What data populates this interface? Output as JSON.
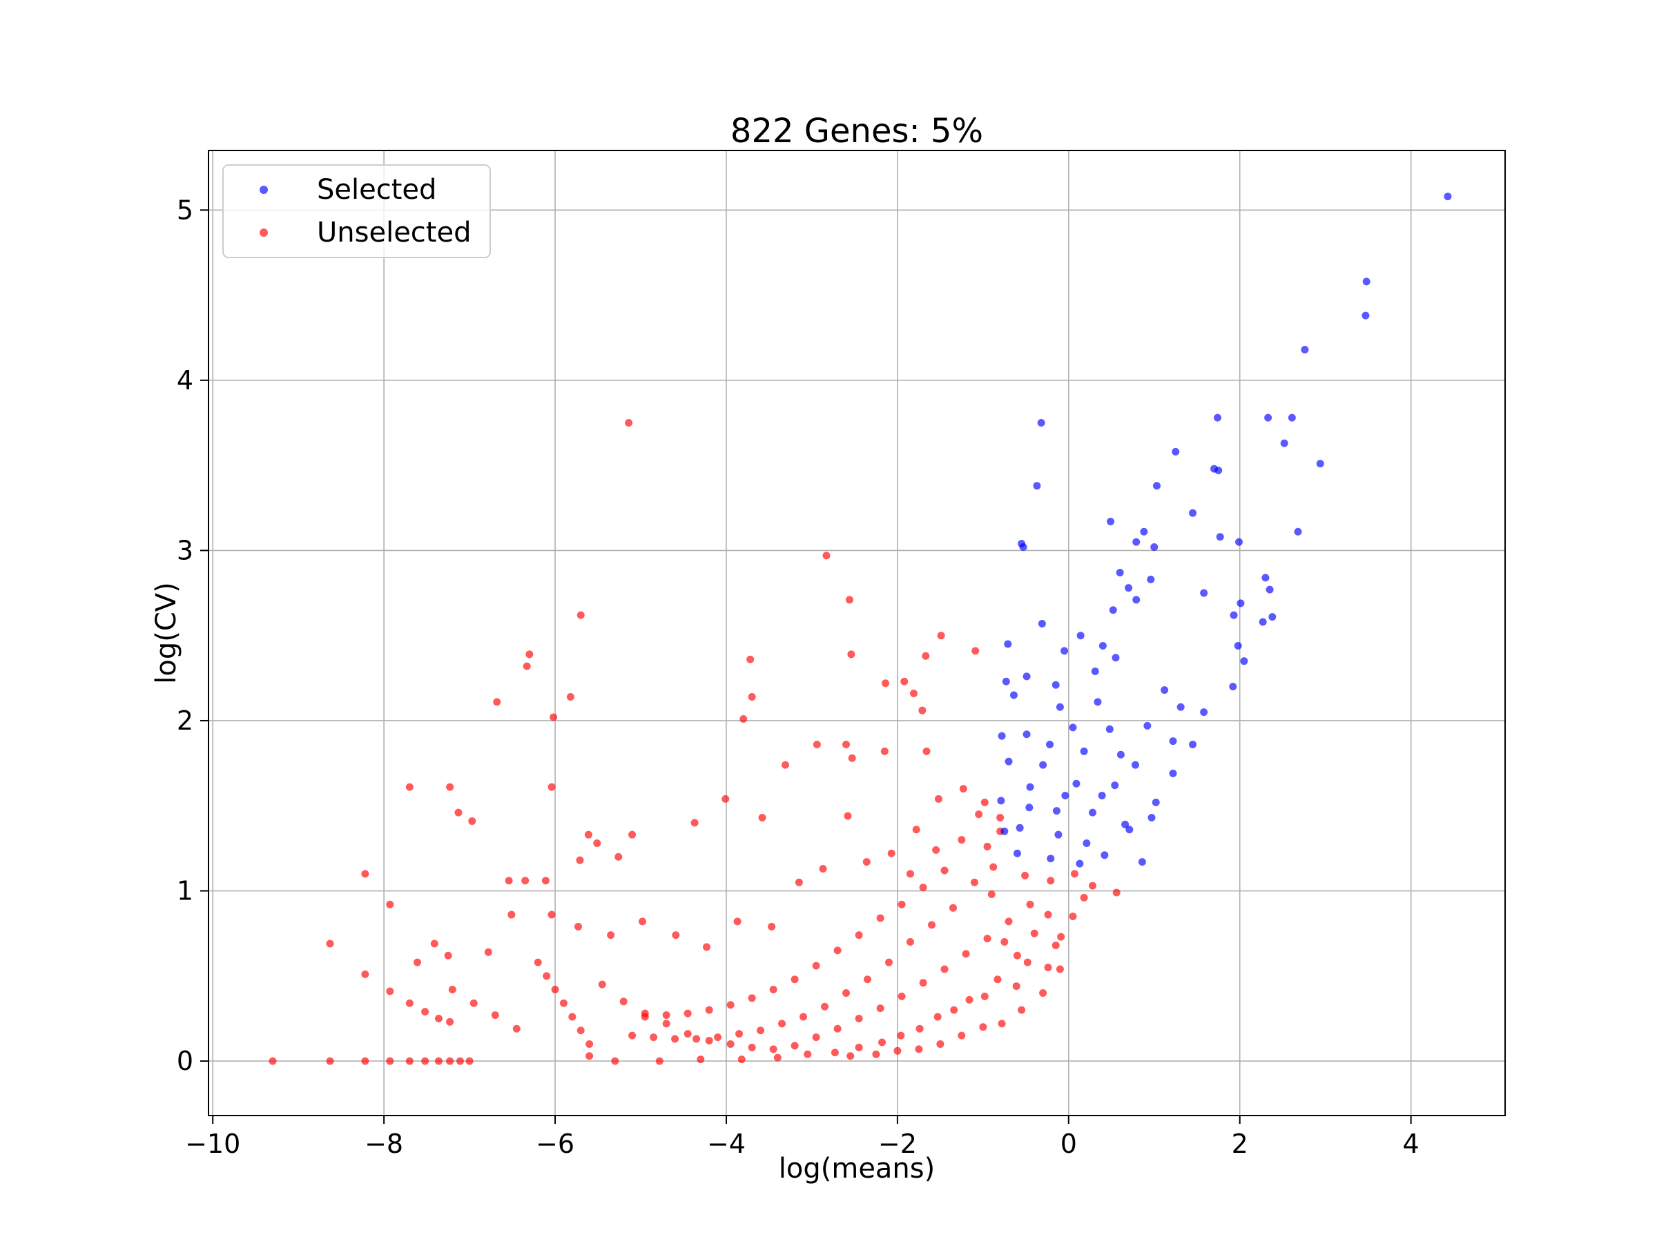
{
  "chart_data": {
    "type": "scatter",
    "title": "822 Genes: 5%",
    "xlabel": "log(means)",
    "ylabel": "log(CV)",
    "xlim": [
      -10.05,
      5.1
    ],
    "ylim": [
      -0.32,
      5.35
    ],
    "x_ticks": [
      -10,
      -8,
      -6,
      -4,
      -2,
      0,
      2,
      4
    ],
    "x_tick_labels": [
      "−10",
      "−8",
      "−6",
      "−4",
      "−2",
      "0",
      "2",
      "4"
    ],
    "y_ticks": [
      0,
      1,
      2,
      3,
      4,
      5
    ],
    "y_tick_labels": [
      "0",
      "1",
      "2",
      "3",
      "4",
      "5"
    ],
    "grid": true,
    "legend_position": "upper-left",
    "series": [
      {
        "name": "Selected",
        "color": "#0000ff",
        "points": [
          [
            4.43,
            5.08
          ],
          [
            3.48,
            4.58
          ],
          [
            3.47,
            4.38
          ],
          [
            2.76,
            4.18
          ],
          [
            2.94,
            3.51
          ],
          [
            2.52,
            3.63
          ],
          [
            2.61,
            3.78
          ],
          [
            2.33,
            3.78
          ],
          [
            1.74,
            3.78
          ],
          [
            1.25,
            3.58
          ],
          [
            1.7,
            3.48
          ],
          [
            1.75,
            3.47
          ],
          [
            1.03,
            3.38
          ],
          [
            1.45,
            3.22
          ],
          [
            2.68,
            3.11
          ],
          [
            -0.32,
            3.75
          ],
          [
            -0.37,
            3.38
          ],
          [
            -0.55,
            3.04
          ],
          [
            -0.53,
            3.02
          ],
          [
            0.49,
            3.17
          ],
          [
            0.79,
            3.05
          ],
          [
            1.0,
            3.02
          ],
          [
            0.88,
            3.11
          ],
          [
            1.77,
            3.08
          ],
          [
            1.99,
            3.05
          ],
          [
            0.96,
            2.83
          ],
          [
            0.6,
            2.87
          ],
          [
            2.3,
            2.84
          ],
          [
            2.35,
            2.77
          ],
          [
            2.01,
            2.69
          ],
          [
            1.93,
            2.62
          ],
          [
            1.58,
            2.75
          ],
          [
            2.38,
            2.61
          ],
          [
            1.98,
            2.44
          ],
          [
            2.27,
            2.58
          ],
          [
            0.52,
            2.65
          ],
          [
            0.7,
            2.78
          ],
          [
            0.79,
            2.71
          ],
          [
            -0.31,
            2.57
          ],
          [
            -0.71,
            2.45
          ],
          [
            -0.05,
            2.41
          ],
          [
            0.31,
            2.29
          ],
          [
            -0.49,
            2.26
          ],
          [
            -0.15,
            2.21
          ],
          [
            -0.73,
            2.23
          ],
          [
            -0.64,
            2.15
          ],
          [
            0.55,
            2.37
          ],
          [
            1.31,
            2.08
          ],
          [
            1.58,
            2.05
          ],
          [
            1.92,
            2.2
          ],
          [
            2.05,
            2.35
          ],
          [
            1.22,
            1.88
          ],
          [
            0.78,
            1.74
          ],
          [
            0.48,
            1.95
          ],
          [
            -0.22,
            1.86
          ],
          [
            -0.49,
            1.92
          ],
          [
            -0.78,
            1.91
          ],
          [
            0.09,
            1.63
          ],
          [
            0.39,
            1.56
          ],
          [
            1.02,
            1.52
          ],
          [
            1.22,
            1.69
          ],
          [
            1.45,
            1.86
          ],
          [
            0.66,
            1.39
          ],
          [
            0.21,
            1.28
          ],
          [
            -0.14,
            1.47
          ],
          [
            -0.45,
            1.61
          ],
          [
            -0.7,
            1.76
          ],
          [
            -0.75,
            1.35
          ],
          [
            -0.6,
            1.22
          ],
          [
            -0.21,
            1.19
          ],
          [
            0.13,
            1.16
          ],
          [
            0.42,
            1.21
          ],
          [
            0.71,
            1.36
          ],
          [
            0.86,
            1.17
          ],
          [
            0.97,
            1.43
          ],
          [
            -0.79,
            1.53
          ],
          [
            -0.46,
            1.49
          ],
          [
            -0.12,
            1.33
          ],
          [
            0.28,
            1.46
          ],
          [
            0.54,
            1.62
          ],
          [
            0.92,
            1.97
          ],
          [
            -0.3,
            1.74
          ],
          [
            0.05,
            1.96
          ],
          [
            0.34,
            2.11
          ],
          [
            0.18,
            1.82
          ],
          [
            -0.57,
            1.37
          ],
          [
            -0.04,
            1.56
          ],
          [
            0.61,
            1.8
          ],
          [
            1.12,
            2.18
          ],
          [
            0.4,
            2.44
          ],
          [
            -0.1,
            2.08
          ],
          [
            0.14,
            2.5
          ]
        ]
      },
      {
        "name": "Unselected",
        "color": "#ff0000",
        "points": [
          [
            -9.3,
            0.0
          ],
          [
            -8.63,
            0.0
          ],
          [
            -8.22,
            0.0
          ],
          [
            -7.93,
            0.0
          ],
          [
            -7.7,
            0.0
          ],
          [
            -7.52,
            0.0
          ],
          [
            -7.36,
            0.0
          ],
          [
            -7.23,
            0.0
          ],
          [
            -7.11,
            0.0
          ],
          [
            -7.0,
            0.0
          ],
          [
            -8.63,
            0.69
          ],
          [
            -8.22,
            1.1
          ],
          [
            -8.22,
            0.51
          ],
          [
            -7.93,
            0.41
          ],
          [
            -7.93,
            0.92
          ],
          [
            -7.7,
            0.34
          ],
          [
            -7.52,
            0.29
          ],
          [
            -7.36,
            0.25
          ],
          [
            -7.23,
            0.23
          ],
          [
            -7.7,
            1.61
          ],
          [
            -7.23,
            1.61
          ],
          [
            -7.13,
            1.46
          ],
          [
            -6.97,
            1.41
          ],
          [
            -6.68,
            2.11
          ],
          [
            -6.33,
            2.32
          ],
          [
            -6.3,
            2.39
          ],
          [
            -6.02,
            2.02
          ],
          [
            -5.82,
            2.14
          ],
          [
            -5.7,
            2.62
          ],
          [
            -6.04,
            1.61
          ],
          [
            -5.14,
            3.75
          ],
          [
            -2.83,
            2.97
          ],
          [
            -2.56,
            2.71
          ],
          [
            -2.54,
            2.39
          ],
          [
            -3.72,
            2.36
          ],
          [
            -3.7,
            2.14
          ],
          [
            -3.8,
            2.01
          ],
          [
            -2.14,
            2.22
          ],
          [
            -1.92,
            2.23
          ],
          [
            -1.81,
            2.16
          ],
          [
            -1.71,
            2.06
          ],
          [
            -1.67,
            2.38
          ],
          [
            -1.49,
            2.5
          ],
          [
            -1.09,
            2.41
          ],
          [
            -2.94,
            1.86
          ],
          [
            -2.6,
            1.86
          ],
          [
            -2.53,
            1.78
          ],
          [
            -2.15,
            1.82
          ],
          [
            -1.66,
            1.82
          ],
          [
            -4.01,
            1.54
          ],
          [
            -3.31,
            1.74
          ],
          [
            -3.58,
            1.43
          ],
          [
            -4.37,
            1.4
          ],
          [
            -5.61,
            1.33
          ],
          [
            -5.1,
            1.33
          ],
          [
            -5.71,
            1.18
          ],
          [
            -5.51,
            1.28
          ],
          [
            -5.26,
            1.2
          ],
          [
            -6.54,
            1.06
          ],
          [
            -6.35,
            1.06
          ],
          [
            -6.11,
            1.06
          ],
          [
            -7.41,
            0.69
          ],
          [
            -7.61,
            0.58
          ],
          [
            -7.25,
            0.62
          ],
          [
            -6.78,
            0.64
          ],
          [
            -6.51,
            0.86
          ],
          [
            -6.04,
            0.86
          ],
          [
            -5.73,
            0.79
          ],
          [
            -5.35,
            0.74
          ],
          [
            -4.98,
            0.82
          ],
          [
            -4.59,
            0.74
          ],
          [
            -4.23,
            0.67
          ],
          [
            -3.87,
            0.82
          ],
          [
            -3.47,
            0.79
          ],
          [
            -3.15,
            1.05
          ],
          [
            -2.87,
            1.13
          ],
          [
            -2.58,
            1.44
          ],
          [
            -2.36,
            1.17
          ],
          [
            -2.07,
            1.22
          ],
          [
            -1.78,
            1.36
          ],
          [
            -1.52,
            1.54
          ],
          [
            -1.23,
            1.6
          ],
          [
            -0.98,
            1.52
          ],
          [
            -0.8,
            1.43
          ],
          [
            -0.88,
            1.14
          ],
          [
            -0.51,
            1.09
          ],
          [
            -0.21,
            1.06
          ],
          [
            0.07,
            1.1
          ],
          [
            0.28,
            1.03
          ],
          [
            0.56,
            0.99
          ],
          [
            -0.24,
            0.86
          ],
          [
            -0.09,
            0.73
          ],
          [
            -0.1,
            0.54
          ],
          [
            -0.24,
            0.55
          ],
          [
            -0.48,
            0.58
          ],
          [
            -0.61,
            0.44
          ],
          [
            -0.83,
            0.48
          ],
          [
            -0.98,
            0.38
          ],
          [
            -1.16,
            0.36
          ],
          [
            -1.34,
            0.3
          ],
          [
            -1.53,
            0.26
          ],
          [
            -1.74,
            0.19
          ],
          [
            -1.96,
            0.15
          ],
          [
            -2.18,
            0.11
          ],
          [
            -2.45,
            0.08
          ],
          [
            -2.73,
            0.05
          ],
          [
            -3.05,
            0.04
          ],
          [
            -3.4,
            0.02
          ],
          [
            -3.82,
            0.01
          ],
          [
            -4.3,
            0.01
          ],
          [
            -4.78,
            0.0
          ],
          [
            -5.3,
            0.0
          ],
          [
            -5.6,
            0.03
          ],
          [
            -5.6,
            0.1
          ],
          [
            -5.7,
            0.18
          ],
          [
            -5.8,
            0.26
          ],
          [
            -5.9,
            0.34
          ],
          [
            -6.0,
            0.42
          ],
          [
            -6.1,
            0.5
          ],
          [
            -6.2,
            0.58
          ],
          [
            -6.45,
            0.19
          ],
          [
            -6.7,
            0.27
          ],
          [
            -6.95,
            0.34
          ],
          [
            -7.2,
            0.42
          ],
          [
            -5.45,
            0.45
          ],
          [
            -5.2,
            0.35
          ],
          [
            -4.95,
            0.28
          ],
          [
            -4.7,
            0.22
          ],
          [
            -4.45,
            0.16
          ],
          [
            -4.2,
            0.12
          ],
          [
            -3.95,
            0.1
          ],
          [
            -3.7,
            0.08
          ],
          [
            -3.45,
            0.07
          ],
          [
            -3.2,
            0.09
          ],
          [
            -2.95,
            0.14
          ],
          [
            -2.7,
            0.19
          ],
          [
            -2.45,
            0.25
          ],
          [
            -2.2,
            0.31
          ],
          [
            -1.95,
            0.38
          ],
          [
            -1.7,
            0.46
          ],
          [
            -1.45,
            0.54
          ],
          [
            -1.2,
            0.63
          ],
          [
            -0.95,
            0.72
          ],
          [
            -0.7,
            0.82
          ],
          [
            -0.45,
            0.92
          ],
          [
            -1.35,
            0.9
          ],
          [
            -1.6,
            0.8
          ],
          [
            -1.85,
            0.7
          ],
          [
            -2.1,
            0.58
          ],
          [
            -2.35,
            0.48
          ],
          [
            -2.6,
            0.4
          ],
          [
            -2.85,
            0.32
          ],
          [
            -3.1,
            0.26
          ],
          [
            -3.35,
            0.22
          ],
          [
            -3.6,
            0.18
          ],
          [
            -3.85,
            0.16
          ],
          [
            -4.1,
            0.14
          ],
          [
            -4.35,
            0.13
          ],
          [
            -4.6,
            0.13
          ],
          [
            -4.85,
            0.14
          ],
          [
            -5.1,
            0.15
          ],
          [
            -1.1,
            1.05
          ],
          [
            -0.9,
            0.98
          ],
          [
            -1.45,
            1.12
          ],
          [
            -1.7,
            1.02
          ],
          [
            -1.95,
            0.92
          ],
          [
            -2.2,
            0.84
          ],
          [
            -2.45,
            0.74
          ],
          [
            -2.7,
            0.65
          ],
          [
            -2.95,
            0.56
          ],
          [
            -3.2,
            0.48
          ],
          [
            -3.45,
            0.42
          ],
          [
            -3.7,
            0.37
          ],
          [
            -3.95,
            0.33
          ],
          [
            -4.2,
            0.3
          ],
          [
            -4.45,
            0.28
          ],
          [
            -4.7,
            0.27
          ],
          [
            -4.95,
            0.26
          ],
          [
            -1.25,
            1.3
          ],
          [
            -1.55,
            1.24
          ],
          [
            -1.85,
            1.1
          ],
          [
            -0.95,
            1.26
          ],
          [
            -0.8,
            1.35
          ],
          [
            -1.05,
            1.45
          ],
          [
            -0.4,
            0.75
          ],
          [
            -0.15,
            0.68
          ],
          [
            0.05,
            0.85
          ],
          [
            0.18,
            0.96
          ],
          [
            -0.6,
            0.62
          ],
          [
            -0.75,
            0.7
          ],
          [
            -0.3,
            0.4
          ],
          [
            -0.55,
            0.3
          ],
          [
            -0.78,
            0.22
          ],
          [
            -1.0,
            0.2
          ],
          [
            -1.25,
            0.15
          ],
          [
            -1.5,
            0.1
          ],
          [
            -1.75,
            0.07
          ],
          [
            -2.0,
            0.06
          ],
          [
            -2.25,
            0.04
          ],
          [
            -2.55,
            0.03
          ]
        ]
      }
    ]
  }
}
